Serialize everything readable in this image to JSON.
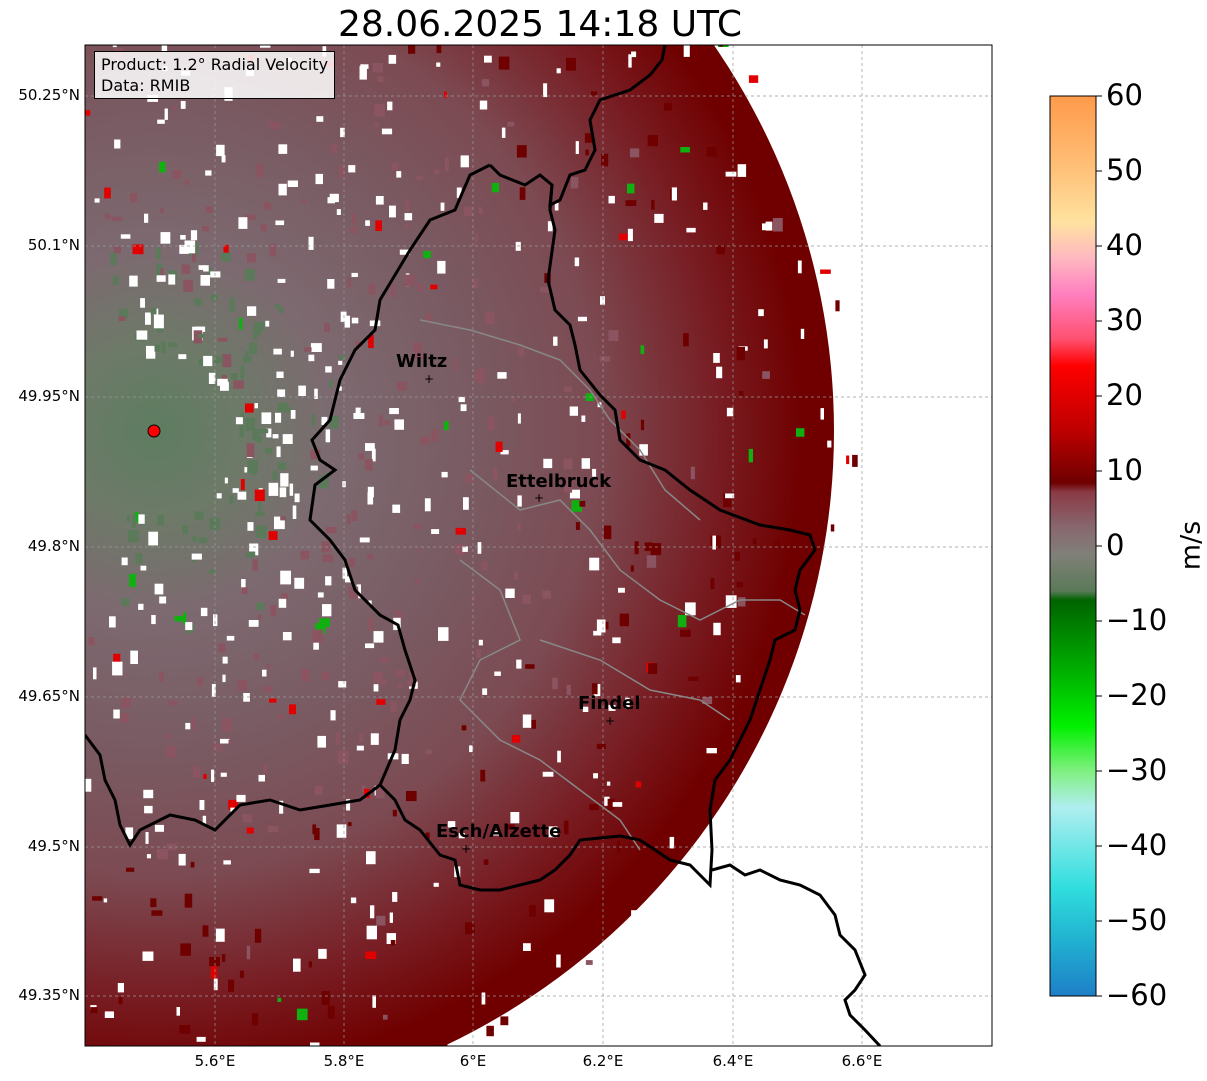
{
  "title": "28.06.2025 14:18 UTC",
  "info": {
    "product": "Product: 1.2° Radial Velocity",
    "source": "Data: RMIB"
  },
  "cities": [
    {
      "name": "Wiltz"
    },
    {
      "name": "Ettelbruck"
    },
    {
      "name": "Findel"
    },
    {
      "name": "Esch/Alzette"
    }
  ],
  "axes": {
    "y_ticks": [
      "50.25°N",
      "50.1°N",
      "49.95°N",
      "49.8°N",
      "49.65°N",
      "49.5°N",
      "49.35°N"
    ],
    "x_ticks": [
      "5.6°E",
      "5.8°E",
      "6°E",
      "6.2°E",
      "6.4°E",
      "6.6°E"
    ]
  },
  "colorbar": {
    "unit": "m/s",
    "ticks": [
      "60",
      "50",
      "40",
      "30",
      "20",
      "10",
      "0",
      "−10",
      "−20",
      "−30",
      "−40",
      "−50",
      "−60"
    ],
    "range": [
      -60,
      60
    ]
  },
  "colors": {
    "receding": "#7a0000",
    "near_zero": "#7e6a70",
    "approaching": "#5a7d5c",
    "radar_site": "#ff0000"
  }
}
